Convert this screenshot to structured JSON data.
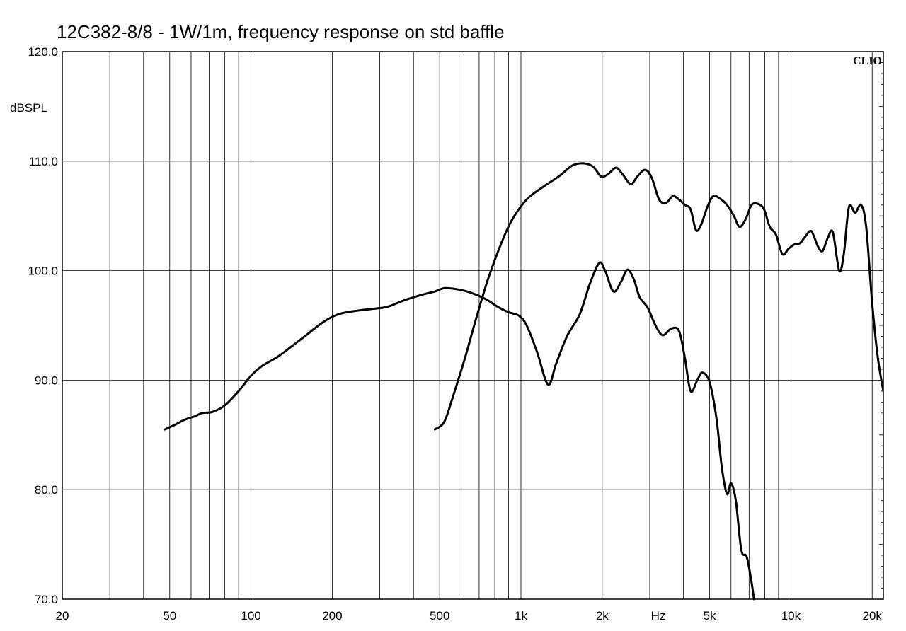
{
  "chart_data": {
    "type": "line",
    "title": "12C382-8/8 - 1W/1m, frequency response on std baffle",
    "ylabel": "dBSPL",
    "xunit": "Hz",
    "brand": "CLIO",
    "xscale": "log",
    "xlim": [
      20,
      22000
    ],
    "ylim": [
      70,
      120
    ],
    "grid": true,
    "x_ticks": [
      {
        "value": 20,
        "label": "20"
      },
      {
        "value": 50,
        "label": "50"
      },
      {
        "value": 100,
        "label": "100"
      },
      {
        "value": 200,
        "label": "200"
      },
      {
        "value": 500,
        "label": "500"
      },
      {
        "value": 1000,
        "label": "1k"
      },
      {
        "value": 2000,
        "label": "2k"
      },
      {
        "value": 5000,
        "label": "5k"
      },
      {
        "value": 10000,
        "label": "10k"
      },
      {
        "value": 20000,
        "label": "20k"
      }
    ],
    "y_ticks": [
      {
        "value": 70,
        "label": "70.0"
      },
      {
        "value": 80,
        "label": "80.0"
      },
      {
        "value": 90,
        "label": "90.0"
      },
      {
        "value": 100,
        "label": "100.0"
      },
      {
        "value": 110,
        "label": "110.0"
      },
      {
        "value": 120,
        "label": "120.0"
      }
    ],
    "series": [
      {
        "points": [
          [
            48,
            85.5
          ],
          [
            52,
            85.9
          ],
          [
            57,
            86.4
          ],
          [
            62,
            86.7
          ],
          [
            66,
            87.0
          ],
          [
            72,
            87.1
          ],
          [
            80,
            87.7
          ],
          [
            90,
            89.0
          ],
          [
            100,
            90.4
          ],
          [
            110,
            91.3
          ],
          [
            125,
            92.1
          ],
          [
            140,
            93.0
          ],
          [
            160,
            94.1
          ],
          [
            185,
            95.3
          ],
          [
            210,
            96.0
          ],
          [
            240,
            96.3
          ],
          [
            280,
            96.5
          ],
          [
            320,
            96.7
          ],
          [
            370,
            97.3
          ],
          [
            430,
            97.8
          ],
          [
            480,
            98.1
          ],
          [
            520,
            98.4
          ],
          [
            580,
            98.3
          ],
          [
            650,
            98.0
          ],
          [
            740,
            97.4
          ],
          [
            820,
            96.7
          ],
          [
            900,
            96.2
          ],
          [
            980,
            95.9
          ],
          [
            1050,
            95.0
          ],
          [
            1150,
            92.5
          ],
          [
            1260,
            89.6
          ],
          [
            1350,
            91.5
          ],
          [
            1480,
            94.0
          ],
          [
            1650,
            96.0
          ],
          [
            1800,
            98.8
          ],
          [
            1950,
            100.7
          ],
          [
            2050,
            100.0
          ],
          [
            2200,
            98.1
          ],
          [
            2350,
            99.0
          ],
          [
            2480,
            100.1
          ],
          [
            2620,
            99.2
          ],
          [
            2750,
            97.6
          ],
          [
            2950,
            96.6
          ],
          [
            3150,
            95.0
          ],
          [
            3350,
            94.1
          ],
          [
            3600,
            94.7
          ],
          [
            3850,
            94.5
          ],
          [
            4050,
            92.0
          ],
          [
            4250,
            89.0
          ],
          [
            4500,
            90.0
          ],
          [
            4700,
            90.7
          ],
          [
            5000,
            89.8
          ],
          [
            5300,
            86.5
          ],
          [
            5550,
            82.0
          ],
          [
            5800,
            79.6
          ],
          [
            6000,
            80.6
          ],
          [
            6250,
            79.0
          ],
          [
            6550,
            74.5
          ],
          [
            6850,
            73.9
          ],
          [
            7100,
            72.0
          ],
          [
            7300,
            70.0
          ]
        ]
      },
      {
        "points": [
          [
            480,
            85.5
          ],
          [
            520,
            86.2
          ],
          [
            560,
            88.5
          ],
          [
            620,
            92.0
          ],
          [
            680,
            95.5
          ],
          [
            750,
            99.0
          ],
          [
            830,
            102.0
          ],
          [
            920,
            104.5
          ],
          [
            1050,
            106.5
          ],
          [
            1200,
            107.6
          ],
          [
            1380,
            108.6
          ],
          [
            1550,
            109.6
          ],
          [
            1700,
            109.8
          ],
          [
            1850,
            109.5
          ],
          [
            1980,
            108.6
          ],
          [
            2100,
            108.8
          ],
          [
            2250,
            109.4
          ],
          [
            2380,
            108.8
          ],
          [
            2550,
            107.9
          ],
          [
            2700,
            108.6
          ],
          [
            2880,
            109.2
          ],
          [
            3050,
            108.5
          ],
          [
            3250,
            106.5
          ],
          [
            3450,
            106.2
          ],
          [
            3650,
            106.8
          ],
          [
            3850,
            106.5
          ],
          [
            4050,
            106.0
          ],
          [
            4250,
            105.6
          ],
          [
            4450,
            103.7
          ],
          [
            4650,
            104.2
          ],
          [
            4900,
            105.8
          ],
          [
            5150,
            106.8
          ],
          [
            5450,
            106.6
          ],
          [
            5800,
            106.0
          ],
          [
            6150,
            105.0
          ],
          [
            6450,
            104.0
          ],
          [
            6800,
            104.7
          ],
          [
            7150,
            106.0
          ],
          [
            7550,
            106.1
          ],
          [
            7950,
            105.6
          ],
          [
            8350,
            104.0
          ],
          [
            8800,
            103.3
          ],
          [
            9300,
            101.5
          ],
          [
            9800,
            102.0
          ],
          [
            10300,
            102.4
          ],
          [
            10800,
            102.5
          ],
          [
            11300,
            103.1
          ],
          [
            11900,
            103.6
          ],
          [
            12600,
            102.2
          ],
          [
            13100,
            101.8
          ],
          [
            13700,
            103.0
          ],
          [
            14300,
            103.5
          ],
          [
            15100,
            100.0
          ],
          [
            15700,
            101.5
          ],
          [
            16400,
            105.8
          ],
          [
            17300,
            105.3
          ],
          [
            18200,
            106.0
          ],
          [
            19000,
            104.0
          ],
          [
            20000,
            97.0
          ],
          [
            21000,
            92.0
          ],
          [
            22000,
            89.0
          ]
        ]
      }
    ]
  }
}
